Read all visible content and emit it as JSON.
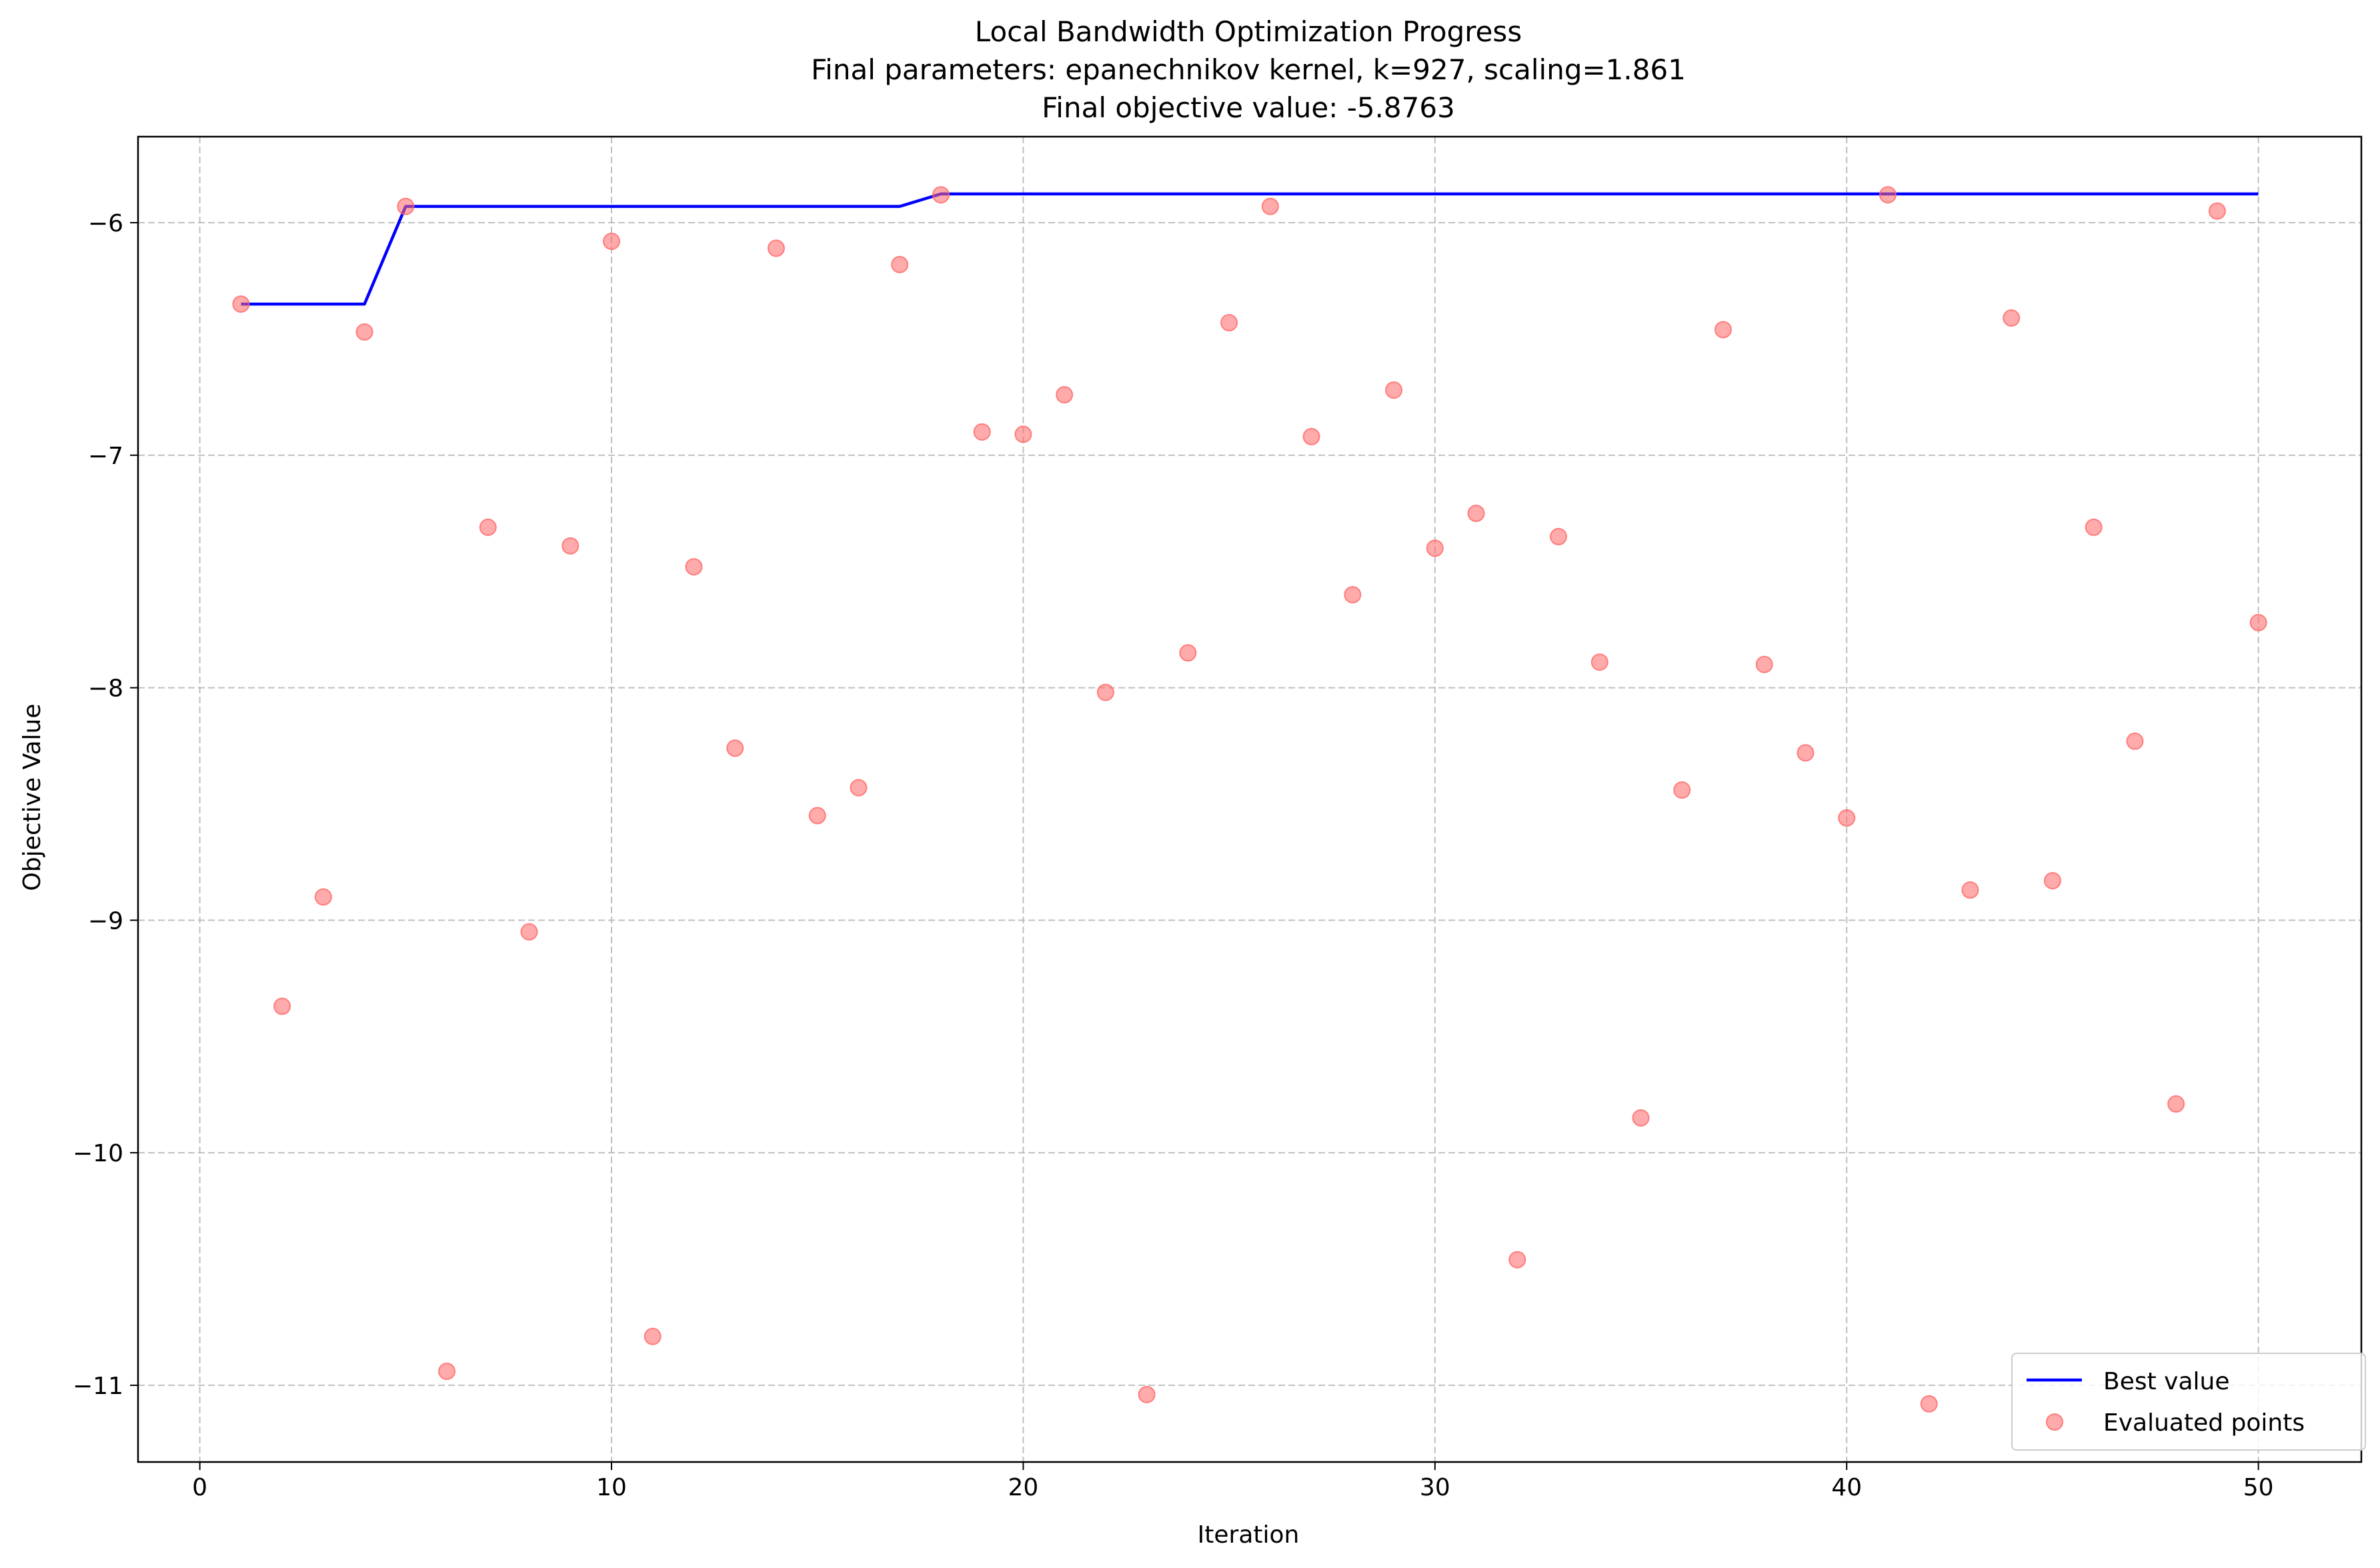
{
  "chart_data": {
    "type": "line+scatter",
    "title": "Local Bandwidth Optimization Progress",
    "subtitle": "Final parameters: epanechnikov kernel, k=927, scaling=1.861",
    "subtitle2": "Final objective value: -5.8763",
    "xlabel": "Iteration",
    "ylabel": "Objective Value",
    "xlim": [
      -1.5,
      52.5
    ],
    "ylim": [
      -11.33,
      -5.63
    ],
    "xticks": [
      0,
      10,
      20,
      30,
      40,
      50
    ],
    "xtick_labels": [
      "0",
      "10",
      "20",
      "30",
      "40",
      "50"
    ],
    "yticks": [
      -6,
      -7,
      -8,
      -9,
      -10,
      -11
    ],
    "ytick_labels": [
      "−6",
      "−7",
      "−8",
      "−9",
      "−10",
      "−11"
    ],
    "grid": true,
    "legend_position": "lower-right",
    "series": [
      {
        "name": "Best value",
        "kind": "line",
        "color": "#0000ff",
        "x": [
          1,
          2,
          3,
          4,
          5,
          6,
          7,
          8,
          9,
          10,
          11,
          12,
          13,
          14,
          15,
          16,
          17,
          18,
          19,
          20,
          21,
          22,
          23,
          24,
          25,
          26,
          27,
          28,
          29,
          30,
          31,
          32,
          33,
          34,
          35,
          36,
          37,
          38,
          39,
          40,
          41,
          42,
          43,
          44,
          45,
          46,
          47,
          48,
          49,
          50
        ],
        "y": [
          -6.35,
          -6.35,
          -6.35,
          -6.35,
          -5.93,
          -5.93,
          -5.93,
          -5.93,
          -5.93,
          -5.93,
          -5.93,
          -5.93,
          -5.93,
          -5.93,
          -5.93,
          -5.93,
          -5.93,
          -5.8763,
          -5.8763,
          -5.8763,
          -5.8763,
          -5.8763,
          -5.8763,
          -5.8763,
          -5.8763,
          -5.8763,
          -5.8763,
          -5.8763,
          -5.8763,
          -5.8763,
          -5.8763,
          -5.8763,
          -5.8763,
          -5.8763,
          -5.8763,
          -5.8763,
          -5.8763,
          -5.8763,
          -5.8763,
          -5.8763,
          -5.8763,
          -5.8763,
          -5.8763,
          -5.8763,
          -5.8763,
          -5.8763,
          -5.8763,
          -5.8763,
          -5.8763,
          -5.8763
        ]
      },
      {
        "name": "Evaluated points",
        "kind": "scatter",
        "color": "#ff6666",
        "x": [
          1,
          2,
          3,
          4,
          5,
          6,
          7,
          8,
          9,
          10,
          11,
          12,
          13,
          14,
          15,
          16,
          17,
          18,
          19,
          20,
          21,
          22,
          23,
          24,
          25,
          26,
          27,
          28,
          29,
          30,
          31,
          32,
          33,
          34,
          35,
          36,
          37,
          38,
          39,
          40,
          41,
          42,
          43,
          44,
          45,
          46,
          47,
          48,
          49,
          50
        ],
        "y": [
          -6.35,
          -9.37,
          -8.9,
          -6.47,
          -5.93,
          -10.94,
          -7.31,
          -9.05,
          -7.39,
          -6.08,
          -10.79,
          -7.48,
          -8.26,
          -6.11,
          -8.55,
          -8.43,
          -6.18,
          -5.88,
          -6.9,
          -6.91,
          -6.74,
          -8.02,
          -11.04,
          -7.85,
          -6.43,
          -5.93,
          -6.92,
          -7.6,
          -6.72,
          -7.4,
          -7.25,
          -10.46,
          -7.35,
          -7.89,
          -9.85,
          -8.44,
          -6.46,
          -7.9,
          -8.28,
          -8.56,
          -5.88,
          -11.08,
          -8.87,
          -6.41,
          -8.83,
          -7.31,
          -8.23,
          -9.79,
          -5.95,
          -7.72
        ]
      }
    ]
  }
}
